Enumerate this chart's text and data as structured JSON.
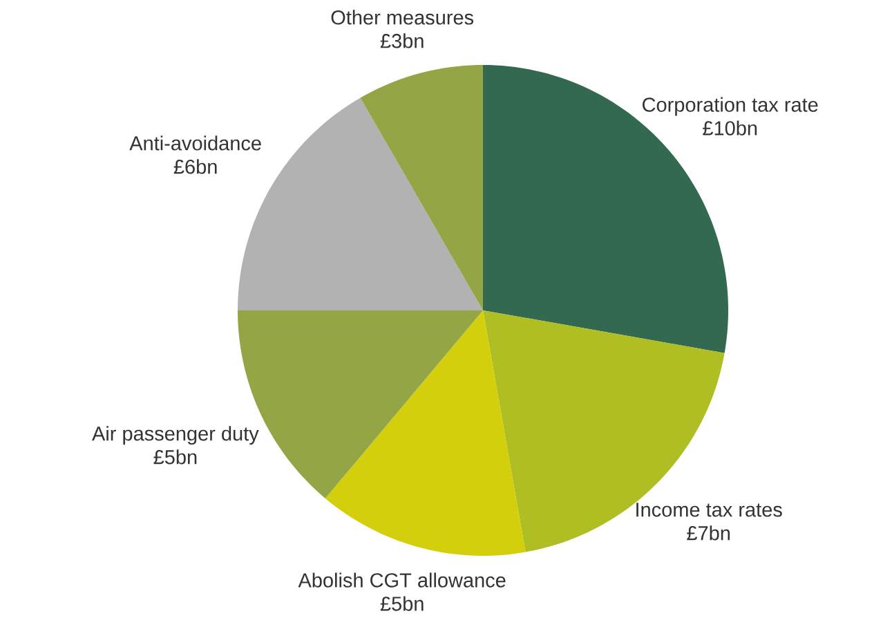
{
  "chart_data": {
    "type": "pie",
    "categories": [
      "Corporation tax rate",
      "Income tax rates",
      "Abolish CGT allowance",
      "Air passenger duty",
      "Anti-avoidance",
      "Other measures"
    ],
    "values": [
      10,
      7,
      5,
      5,
      6,
      3
    ],
    "value_labels": [
      "£10bn",
      "£7bn",
      "£5bn",
      "£5bn",
      "£6bn",
      "£3bn"
    ],
    "colors": [
      "#336950",
      "#afbe22",
      "#d4cf0c",
      "#93a545",
      "#b2b2b2",
      "#93a545"
    ]
  }
}
